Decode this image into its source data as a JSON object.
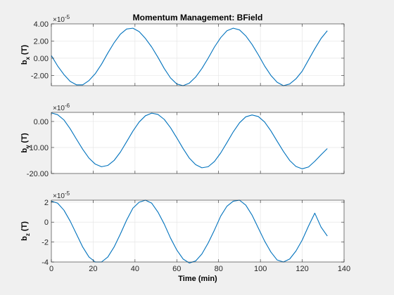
{
  "figure": {
    "background": "#f0f0f0",
    "axes_background": "#ffffff",
    "line_color": "#0072bd",
    "grid_color": "#e6e6e6",
    "axis_color": "#262626"
  },
  "chart_data": [
    {
      "type": "line",
      "title": "Momentum Management: BField",
      "xlabel": "",
      "ylabel": "b_x (T)",
      "ylabel_main": "b",
      "ylabel_sub": "x",
      "ylabel_unit": "(T)",
      "exponent_base": "×10",
      "exponent_power": "-5",
      "xlim": [
        0,
        140
      ],
      "ylim": [
        -3.2,
        4.0
      ],
      "xticks": [],
      "yticks": [
        4.0,
        2.0,
        0.0,
        -2.0
      ],
      "ytick_labels": [
        "4.00",
        "2.00",
        "0.00",
        "-2.00"
      ],
      "grid": true,
      "series": [
        {
          "x": [
            0,
            3,
            6,
            9,
            12,
            15,
            18,
            21,
            24,
            27,
            30,
            33,
            36,
            39,
            42,
            45,
            48,
            51,
            54,
            57,
            60,
            63,
            66,
            69,
            72,
            75,
            78,
            81,
            84,
            87,
            90,
            93,
            96,
            99,
            102,
            105,
            108,
            111,
            114,
            117,
            120,
            123,
            126,
            129,
            132
          ],
          "y": [
            0.3,
            -0.9,
            -1.9,
            -2.7,
            -3.1,
            -3.1,
            -2.6,
            -1.8,
            -0.7,
            0.6,
            1.8,
            2.8,
            3.4,
            3.5,
            3.1,
            2.3,
            1.3,
            0.1,
            -1.2,
            -2.3,
            -3.0,
            -3.2,
            -2.9,
            -2.2,
            -1.2,
            0.0,
            1.3,
            2.4,
            3.2,
            3.5,
            3.3,
            2.6,
            1.6,
            0.4,
            -0.9,
            -2.0,
            -2.8,
            -3.2,
            -3.0,
            -2.4,
            -1.5,
            -0.2,
            1.1,
            2.3,
            3.2
          ]
        }
      ]
    },
    {
      "type": "line",
      "title": "",
      "xlabel": "",
      "ylabel": "b_y (T)",
      "ylabel_main": "b",
      "ylabel_sub": "y",
      "ylabel_unit": "(T)",
      "exponent_base": "×10",
      "exponent_power": "-6",
      "xlim": [
        0,
        140
      ],
      "ylim": [
        -20.0,
        3.5
      ],
      "xticks": [],
      "yticks": [
        0.0,
        -10.0,
        -20.0
      ],
      "ytick_labels": [
        "0.00",
        "-10.00",
        "-20.00"
      ],
      "grid": true,
      "series": [
        {
          "x": [
            0,
            3,
            6,
            9,
            12,
            15,
            18,
            21,
            24,
            27,
            30,
            33,
            36,
            39,
            42,
            45,
            48,
            51,
            54,
            57,
            60,
            63,
            66,
            69,
            72,
            75,
            78,
            81,
            84,
            87,
            90,
            93,
            96,
            99,
            102,
            105,
            108,
            111,
            114,
            117,
            120,
            123,
            126,
            129,
            132
          ],
          "y": [
            3.3,
            2.6,
            0.6,
            -2.8,
            -6.8,
            -10.7,
            -14.1,
            -16.4,
            -17.4,
            -16.9,
            -15.0,
            -11.8,
            -7.8,
            -3.7,
            -0.2,
            2.2,
            3.2,
            2.7,
            0.8,
            -2.4,
            -6.3,
            -10.4,
            -14.1,
            -16.6,
            -17.8,
            -17.4,
            -15.4,
            -12.1,
            -8.1,
            -4.0,
            -0.5,
            1.8,
            2.5,
            1.9,
            -0.2,
            -3.6,
            -7.6,
            -11.5,
            -15.0,
            -17.3,
            -18.2,
            -17.5,
            -15.3,
            -12.8,
            -10.4
          ]
        }
      ]
    },
    {
      "type": "line",
      "title": "",
      "xlabel": "Time (min)",
      "ylabel": "b_z (T)",
      "ylabel_main": "b",
      "ylabel_sub": "z",
      "ylabel_unit": "(T)",
      "exponent_base": "×10",
      "exponent_power": "-5",
      "xlim": [
        0,
        140
      ],
      "ylim": [
        -4.0,
        2.2
      ],
      "xticks": [
        0,
        20,
        40,
        60,
        80,
        100,
        120,
        140
      ],
      "xtick_labels": [
        "0",
        "20",
        "40",
        "60",
        "80",
        "100",
        "120",
        "140"
      ],
      "yticks": [
        2,
        0,
        -2,
        -4
      ],
      "ytick_labels": [
        "2",
        "0",
        "-2",
        "-4"
      ],
      "grid": true,
      "series": [
        {
          "x": [
            0,
            3,
            6,
            9,
            12,
            15,
            18,
            21,
            24,
            27,
            30,
            33,
            36,
            39,
            42,
            45,
            48,
            51,
            54,
            57,
            60,
            63,
            66,
            69,
            72,
            75,
            78,
            81,
            84,
            87,
            90,
            93,
            96,
            99,
            102,
            105,
            108,
            111,
            114,
            117,
            120,
            123,
            126,
            129,
            132
          ],
          "y": [
            2.1,
            1.9,
            1.2,
            0.1,
            -1.2,
            -2.5,
            -3.5,
            -4.0,
            -4.0,
            -3.5,
            -2.5,
            -1.2,
            0.2,
            1.4,
            2.0,
            2.2,
            1.9,
            1.0,
            -0.2,
            -1.6,
            -2.8,
            -3.7,
            -4.1,
            -3.9,
            -3.2,
            -2.1,
            -0.8,
            0.6,
            1.6,
            2.1,
            2.2,
            1.7,
            0.7,
            -0.6,
            -1.9,
            -3.0,
            -3.8,
            -4.0,
            -3.7,
            -2.9,
            -1.8,
            -0.4,
            0.9,
            -0.5,
            -1.4
          ]
        }
      ]
    }
  ]
}
